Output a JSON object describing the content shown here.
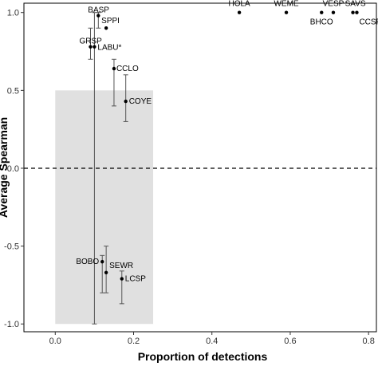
{
  "chart_data": {
    "type": "scatter",
    "xlabel": "Proportion of detections",
    "ylabel": "Average Spearman",
    "xlim": [
      -0.08,
      0.82
    ],
    "ylim": [
      -1.05,
      1.06
    ],
    "x_ticks": [
      0.0,
      0.2,
      0.4,
      0.6,
      0.8
    ],
    "x_tick_labels": [
      "0.0",
      "0.2",
      "0.4",
      "0.6",
      "0.8"
    ],
    "y_ticks": [
      -1.0,
      -0.5,
      0.0,
      0.5,
      1.0
    ],
    "y_tick_labels": [
      "-1.0",
      "-0.5",
      "0.0",
      "0.5",
      "1.0"
    ],
    "grid": false,
    "reference_line": {
      "y": 0,
      "style": "dashed"
    },
    "shaded_region": {
      "x": [
        0.0,
        0.25
      ],
      "y": [
        -1.0,
        0.5
      ],
      "color": "#e0e0e0"
    },
    "points": [
      {
        "label": "BASP",
        "x": 0.11,
        "y": 0.98,
        "err_low": 0.9,
        "err_high": 1.0
      },
      {
        "label": "SPPI",
        "x": 0.13,
        "y": 0.9,
        "err_low": null,
        "err_high": null
      },
      {
        "label": "GRSP",
        "x": 0.09,
        "y": 0.78,
        "err_low": 0.7,
        "err_high": 0.9
      },
      {
        "label": "LABU*",
        "x": 0.1,
        "y": 0.78,
        "err_low": -1.0,
        "err_high": 1.0
      },
      {
        "label": "CCLO",
        "x": 0.15,
        "y": 0.64,
        "err_low": 0.4,
        "err_high": 0.7
      },
      {
        "label": "COYE",
        "x": 0.18,
        "y": 0.43,
        "err_low": 0.3,
        "err_high": 0.6
      },
      {
        "label": "HOLA",
        "x": 0.47,
        "y": 1.0,
        "err_low": null,
        "err_high": null
      },
      {
        "label": "WEME",
        "x": 0.59,
        "y": 1.0,
        "err_low": null,
        "err_high": null
      },
      {
        "label": "BHCO",
        "x": 0.68,
        "y": 1.0,
        "err_low": null,
        "err_high": null
      },
      {
        "label": "VESP",
        "x": 0.71,
        "y": 1.0,
        "err_low": null,
        "err_high": null
      },
      {
        "label": "SAVS",
        "x": 0.76,
        "y": 1.0,
        "err_low": null,
        "err_high": null
      },
      {
        "label": "CCSP",
        "x": 0.77,
        "y": 1.0,
        "err_low": null,
        "err_high": null
      },
      {
        "label": "BOBO",
        "x": 0.12,
        "y": -0.6,
        "err_low": -0.8,
        "err_high": -0.56
      },
      {
        "label": "SEWR",
        "x": 0.13,
        "y": -0.67,
        "err_low": -0.8,
        "err_high": -0.5
      },
      {
        "label": "LCSP",
        "x": 0.17,
        "y": -0.71,
        "err_low": -0.87,
        "err_high": -0.66
      }
    ]
  }
}
